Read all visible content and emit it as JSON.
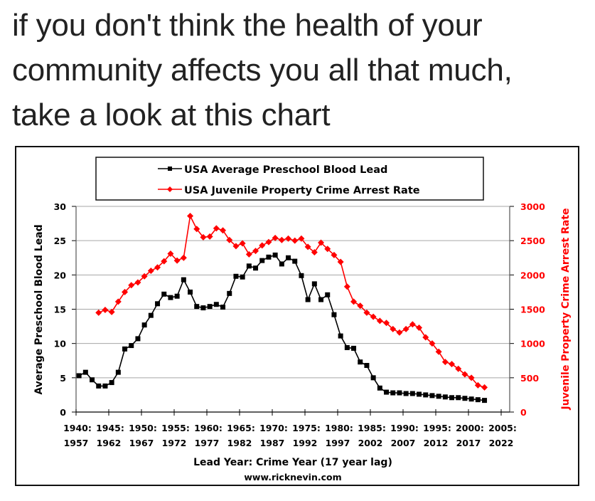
{
  "caption": {
    "lines": [
      "if you don't think the health of your",
      "community affects you all that much,",
      "take a look at this chart"
    ]
  },
  "colors": {
    "lead_series": "#000000",
    "crime_series": "#ff0000",
    "gridline": "#a6a6a6",
    "caption_text": "#222222"
  },
  "chart_data": {
    "type": "line",
    "title": "",
    "xlabel": "Lead Year: Crime Year (17 year lag)",
    "source": "www.ricknevin.com",
    "ylabel": "Average Preschool Blood Lead",
    "y2label": "Juvenile Property Crime Arrest Rate",
    "xlim": [
      1940,
      2006
    ],
    "ylim": [
      0,
      30
    ],
    "y2lim": [
      0,
      3000
    ],
    "grid": true,
    "legend_position": "top-center",
    "x_ticks": [
      {
        "value": 1940,
        "line1": "1940:",
        "line2": "1957"
      },
      {
        "value": 1945,
        "line1": "1945:",
        "line2": "1962"
      },
      {
        "value": 1950,
        "line1": "1950:",
        "line2": "1967"
      },
      {
        "value": 1955,
        "line1": "1955:",
        "line2": "1972"
      },
      {
        "value": 1960,
        "line1": "1960:",
        "line2": "1977"
      },
      {
        "value": 1965,
        "line1": "1965:",
        "line2": "1982"
      },
      {
        "value": 1970,
        "line1": "1970:",
        "line2": "1987"
      },
      {
        "value": 1975,
        "line1": "1975:",
        "line2": "1992"
      },
      {
        "value": 1980,
        "line1": "1980:",
        "line2": "1997"
      },
      {
        "value": 1985,
        "line1": "1985:",
        "line2": "2002"
      },
      {
        "value": 1990,
        "line1": "1990:",
        "line2": "2007"
      },
      {
        "value": 1995,
        "line1": "1995:",
        "line2": "2012"
      },
      {
        "value": 2000,
        "line1": "2000:",
        "line2": "2017"
      },
      {
        "value": 2005,
        "line1": "2005:",
        "line2": "2022"
      }
    ],
    "y_ticks": [
      "0",
      "5",
      "10",
      "15",
      "20",
      "25",
      "30"
    ],
    "y2_ticks": [
      "0",
      "500",
      "1000",
      "1500",
      "2000",
      "2500",
      "3000"
    ],
    "series": [
      {
        "name": "USA Average Preschool Blood Lead",
        "axis": "left",
        "color": "#000000",
        "marker": "square",
        "start_year": 1940,
        "values": [
          5.3,
          5.8,
          4.7,
          3.8,
          3.8,
          4.3,
          5.8,
          9.2,
          9.7,
          10.7,
          12.7,
          14.1,
          15.8,
          17.2,
          16.7,
          16.9,
          19.3,
          17.5,
          15.4,
          15.2,
          15.4,
          15.7,
          15.3,
          17.3,
          19.8,
          19.7,
          21.3,
          21.0,
          22.1,
          22.6,
          22.9,
          21.6,
          22.5,
          22.0,
          19.9,
          16.4,
          18.7,
          16.4,
          17.1,
          14.2,
          11.1,
          9.4,
          9.3,
          7.3,
          6.8,
          5.0,
          3.5,
          2.9,
          2.8,
          2.8,
          2.7,
          2.7,
          2.6,
          2.5,
          2.4,
          2.3,
          2.2,
          2.1,
          2.1,
          2.0,
          1.9,
          1.8,
          1.7
        ]
      },
      {
        "name": "USA Juvenile Property Crime Arrest Rate",
        "axis": "right",
        "color": "#ff0000",
        "marker": "diamond",
        "start_year": 1943,
        "values": [
          1450,
          1490,
          1460,
          1610,
          1750,
          1850,
          1890,
          1980,
          2060,
          2110,
          2200,
          2310,
          2210,
          2250,
          2860,
          2670,
          2550,
          2560,
          2680,
          2650,
          2510,
          2420,
          2460,
          2300,
          2350,
          2430,
          2480,
          2540,
          2510,
          2530,
          2500,
          2530,
          2410,
          2330,
          2470,
          2380,
          2290,
          2190,
          1830,
          1610,
          1550,
          1450,
          1390,
          1330,
          1300,
          1210,
          1160,
          1210,
          1280,
          1230,
          1090,
          1000,
          880,
          730,
          700,
          630,
          550,
          500,
          390,
          360
        ]
      }
    ]
  }
}
